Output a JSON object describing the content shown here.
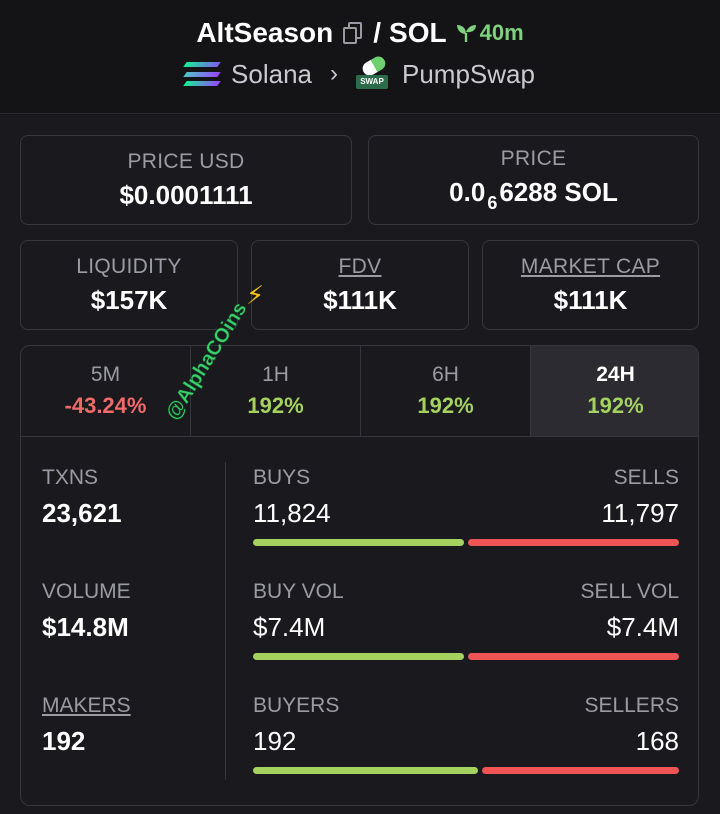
{
  "header": {
    "token": "AltSeason",
    "separator": "/",
    "quote": "SOL",
    "age": "40m",
    "chain": "Solana",
    "dex": "PumpSwap",
    "dex_badge": "SWAP"
  },
  "cards": {
    "price_usd": {
      "label": "PRICE USD",
      "value": "$0.0001111"
    },
    "price": {
      "label": "PRICE",
      "value_prefix": "0.0",
      "value_sub": "6",
      "value_suffix": "6288 SOL"
    },
    "liquidity": {
      "label": "LIQUIDITY",
      "value": "$157K"
    },
    "fdv": {
      "label": "FDV",
      "value": "$111K"
    },
    "market_cap": {
      "label": "MARKET CAP",
      "value": "$111K"
    }
  },
  "tabs": [
    {
      "label": "5M",
      "value": "-43.24%"
    },
    {
      "label": "1H",
      "value": "192%"
    },
    {
      "label": "6H",
      "value": "192%"
    },
    {
      "label": "24H",
      "value": "192%"
    }
  ],
  "active_tab": "24H",
  "stats": {
    "txns": {
      "label": "TXNS",
      "value": "23,621"
    },
    "volume": {
      "label": "VOLUME",
      "value": "$14.8M"
    },
    "makers": {
      "label": "MAKERS",
      "value": "192"
    },
    "buys": {
      "label": "BUYS",
      "value": "11,824",
      "ratio": 0.5005
    },
    "sells": {
      "label": "SELLS",
      "value": "11,797"
    },
    "buy_vol": {
      "label": "BUY VOL",
      "value": "$7.4M",
      "ratio": 0.5
    },
    "sell_vol": {
      "label": "SELL VOL",
      "value": "$7.4M"
    },
    "buyers": {
      "label": "BUYERS",
      "value": "192",
      "ratio": 0.533
    },
    "sellers": {
      "label": "SELLERS",
      "value": "168"
    }
  },
  "watermark": "@AlphaCOins",
  "colors": {
    "positive": "#a5d25f",
    "negative": "#f06a6a",
    "buy_bar": "#a5d25f",
    "sell_bar": "#f05454",
    "age": "#7fd07f",
    "solana_gradient": [
      "#14f195",
      "#7e5cf0",
      "#9945ff"
    ]
  }
}
